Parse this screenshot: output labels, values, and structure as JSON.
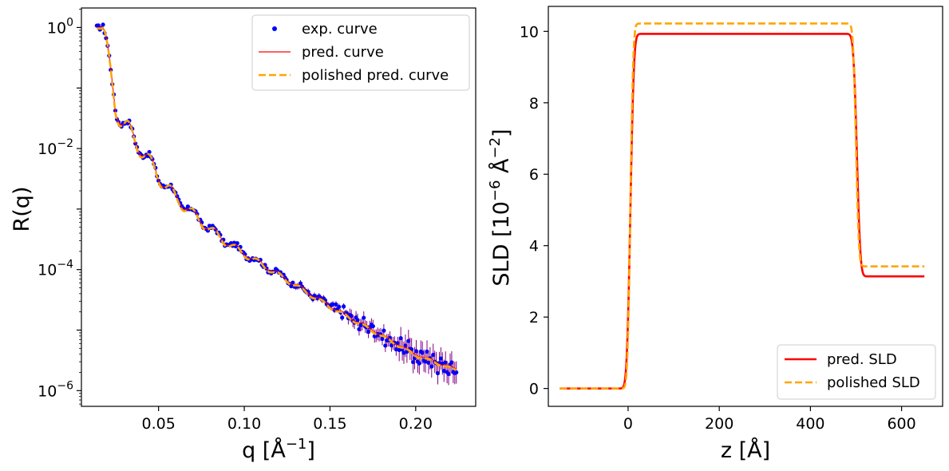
{
  "chart_data": [
    {
      "type": "line",
      "yscale": "log",
      "xlabel": "q [Å",
      "xlabel_exp": "−1",
      "xlabel_close": "]",
      "ylabel": "R(q)",
      "xlim": [
        0.005,
        0.235
      ],
      "ylim": [
        5.5e-07,
        2.1
      ],
      "xticks": [
        0.05,
        0.1,
        0.15,
        0.2
      ],
      "xtick_labels": [
        "0.05",
        "0.10",
        "0.15",
        "0.20"
      ],
      "yticks": [
        1,
        0.01,
        0.0001,
        1e-06
      ],
      "ytick_labels": [
        {
          "base": "10",
          "exp": "0"
        },
        {
          "base": "10",
          "exp": "−2"
        },
        {
          "base": "10",
          "exp": "−4"
        },
        {
          "base": "10",
          "exp": "−6"
        }
      ],
      "q_range": [
        0.014,
        0.224
      ],
      "critical_q": 0.0175,
      "fringe_period": 0.0125,
      "decay_anchors": {
        "q": [
          0.0175,
          0.025,
          0.03,
          0.04,
          0.05,
          0.06,
          0.075,
          0.09,
          0.11,
          0.13,
          0.15,
          0.175,
          0.2,
          0.224
        ],
        "log10_R": [
          0.0,
          -1.3,
          -1.6,
          -2.0,
          -2.45,
          -2.8,
          -3.2,
          -3.55,
          -3.9,
          -4.25,
          -4.6,
          -5.0,
          -5.4,
          -5.65
        ]
      },
      "series": [
        {
          "name": "exp. curve",
          "style": "dots",
          "color": "#0000ff",
          "errorbar_color": "#800080"
        },
        {
          "name": "pred. curve",
          "style": "solid",
          "color": "#ff0000"
        },
        {
          "name": "polished pred. curve",
          "style": "dashed",
          "color": "#ffa500"
        }
      ],
      "legend": {
        "position": "top-right",
        "entries": [
          "exp. curve",
          "pred. curve",
          "polished pred. curve"
        ]
      }
    },
    {
      "type": "line",
      "xlabel": "z [Å]",
      "ylabel": "SLD [10",
      "ylabel_exp": "−6",
      "ylabel_mid": " Å",
      "ylabel_exp2": "−2",
      "ylabel_close": "]",
      "xlim": [
        -175,
        690
      ],
      "ylim": [
        -0.5,
        10.7
      ],
      "xticks": [
        0,
        200,
        400,
        600
      ],
      "xtick_labels": [
        "0",
        "200",
        "400",
        "600"
      ],
      "yticks": [
        0,
        2,
        4,
        6,
        8,
        10
      ],
      "ytick_labels": [
        "0",
        "2",
        "4",
        "6",
        "8",
        "10"
      ],
      "z_range": [
        -150,
        650
      ],
      "series": [
        {
          "name": "pred. SLD",
          "style": "solid",
          "color": "#ff0000",
          "profile": {
            "ambient": 0.0,
            "film": 9.93,
            "substrate": 3.14,
            "interface1_z": 5,
            "interface1_width": 6,
            "interface2_z": 502,
            "interface2_width": 6
          }
        },
        {
          "name": "polished SLD",
          "style": "dashed",
          "color": "#ffa500",
          "profile": {
            "ambient": 0.0,
            "film": 10.22,
            "substrate": 3.42,
            "interface1_z": 5,
            "interface1_width": 5,
            "interface2_z": 500,
            "interface2_width": 5
          }
        }
      ],
      "legend": {
        "position": "bottom-right",
        "entries": [
          "pred. SLD",
          "polished SLD"
        ]
      }
    }
  ]
}
